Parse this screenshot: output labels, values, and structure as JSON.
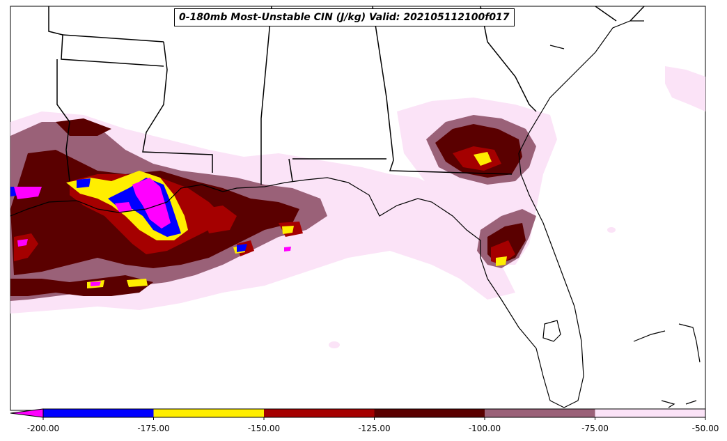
{
  "title": "0-180mb Most-Unstable CIN (J/kg) Valid: 202105112100f017",
  "colorbar": {
    "extend_color": "#ff00ff",
    "bins": [
      {
        "color": "#0000ff"
      },
      {
        "color": "#ffee00"
      },
      {
        "color": "#a50000"
      },
      {
        "color": "#5a0000"
      },
      {
        "color": "#9a6178"
      },
      {
        "color": "#fbe3f7"
      }
    ],
    "ticks": [
      "-200.00",
      "-175.00",
      "-150.00",
      "-125.00",
      "-100.00",
      "-75.00",
      "-50.00"
    ]
  },
  "region": "Southeastern United States and Gulf of Mexico",
  "map_colors": {
    "background": "#ffffff",
    "border": "#000000"
  }
}
